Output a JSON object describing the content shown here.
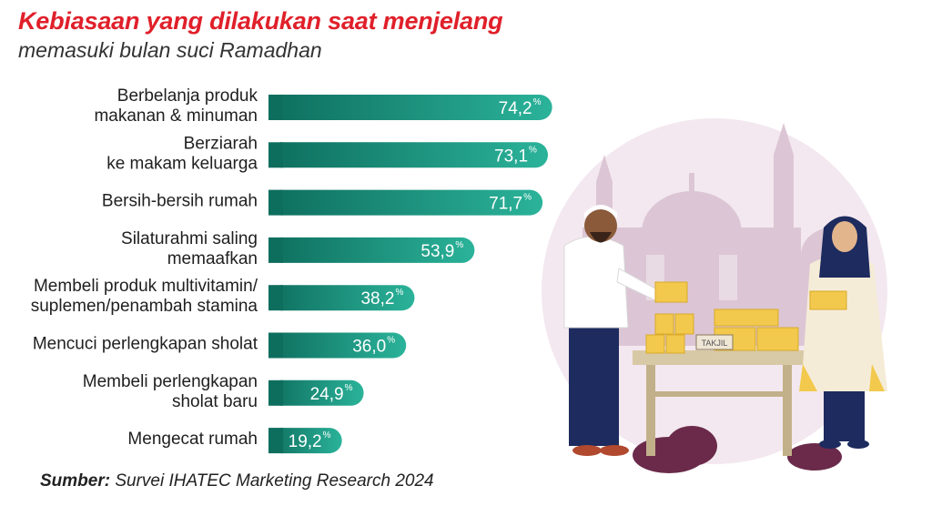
{
  "header": {
    "title": "Kebiasaan yang dilakukan saat menjelang",
    "subtitle": "memasuki bulan suci Ramadhan"
  },
  "footer": {
    "source_label": "Sumber:",
    "source_text": "Survei IHATEC Marketing Research 2024"
  },
  "illustration": {
    "sign_text": "TAKJIL"
  },
  "colors": {
    "title": "#e0202a",
    "bar_dark": "#0e6e5e",
    "bar_light": "#2bb39a",
    "value_text": "#ffffff"
  },
  "chart_data": {
    "type": "bar",
    "orientation": "horizontal",
    "categories": [
      [
        "Berbelanja produk",
        "makanan & minuman"
      ],
      [
        "Berziarah",
        "ke makam keluarga"
      ],
      [
        "Bersih-bersih rumah"
      ],
      [
        "Silaturahmi saling",
        "memaafkan"
      ],
      [
        "Membeli produk multivitamin/",
        "suplemen/penambah stamina"
      ],
      [
        "Mencuci perlengkapan sholat"
      ],
      [
        "Membeli perlengkapan",
        "sholat baru"
      ],
      [
        "Mengecat rumah"
      ]
    ],
    "values": [
      74.2,
      73.1,
      71.7,
      53.9,
      38.2,
      36.0,
      24.9,
      19.2
    ],
    "value_labels": [
      "74,2",
      "73,1",
      "71,7",
      "53,9",
      "38,2",
      "36,0",
      "24,9",
      "19,2"
    ],
    "unit_label": "%",
    "xlim": [
      0,
      100
    ]
  }
}
